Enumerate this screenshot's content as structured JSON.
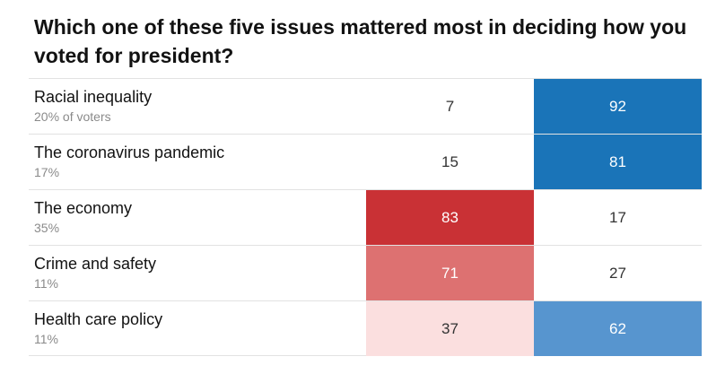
{
  "title": "Which one of these five issues mattered most in deciding how you voted for president?",
  "colors": {
    "red_dark": "#c93135",
    "red_mid": "#dd7171",
    "red_light": "#fbdfdf",
    "blue_dark": "#1a74b8",
    "blue_mid": "#5795cf",
    "white": "#ffffff"
  },
  "chart_data": {
    "type": "table",
    "rows": [
      {
        "issue": "Racial inequality",
        "share": "20% of voters",
        "trump": 7,
        "biden": 92,
        "trump_color": "#ffffff",
        "biden_color": "#1a74b8"
      },
      {
        "issue": "The coronavirus pandemic",
        "share": "17%",
        "trump": 15,
        "biden": 81,
        "trump_color": "#ffffff",
        "biden_color": "#1a74b8"
      },
      {
        "issue": "The economy",
        "share": "35%",
        "trump": 83,
        "biden": 17,
        "trump_color": "#c93135",
        "biden_color": "#ffffff"
      },
      {
        "issue": "Crime and safety",
        "share": "11%",
        "trump": 71,
        "biden": 27,
        "trump_color": "#dd7171",
        "biden_color": "#ffffff"
      },
      {
        "issue": "Health care policy",
        "share": "11%",
        "trump": 37,
        "biden": 62,
        "trump_color": "#fbdfdf",
        "biden_color": "#5795cf"
      }
    ]
  }
}
